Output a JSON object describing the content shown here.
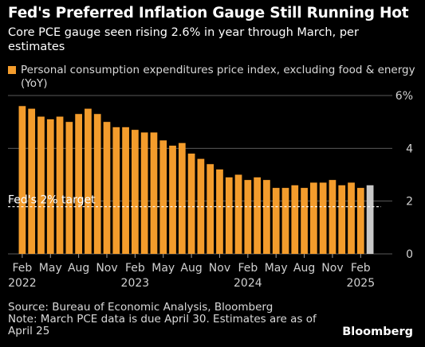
{
  "header": {
    "title": "Fed's Preferred Inflation Gauge Still Running Hot",
    "subtitle": "Core PCE gauge seen rising 2.6% in year through March, per estimates"
  },
  "legend": {
    "label": "Personal consumption expenditures price index, excluding food & energy (YoY)",
    "color": "#f39c2c"
  },
  "footer": {
    "source": "Source: Bureau of Economic Analysis, Bloomberg",
    "note": "Note: March PCE data is due April 30. Estimates are as of April 25",
    "brand": "Bloomberg"
  },
  "chart_data": {
    "type": "bar",
    "categories": [
      "2022-02",
      "2022-03",
      "2022-04",
      "2022-05",
      "2022-06",
      "2022-07",
      "2022-08",
      "2022-09",
      "2022-10",
      "2022-11",
      "2022-12",
      "2023-01",
      "2023-02",
      "2023-03",
      "2023-04",
      "2023-05",
      "2023-06",
      "2023-07",
      "2023-08",
      "2023-09",
      "2023-10",
      "2023-11",
      "2023-12",
      "2024-01",
      "2024-02",
      "2024-03",
      "2024-04",
      "2024-05",
      "2024-06",
      "2024-07",
      "2024-08",
      "2024-09",
      "2024-10",
      "2024-11",
      "2024-12",
      "2025-01",
      "2025-02",
      "2025-03"
    ],
    "values": [
      5.6,
      5.5,
      5.2,
      5.1,
      5.2,
      5.0,
      5.3,
      5.5,
      5.3,
      5.0,
      4.8,
      4.8,
      4.7,
      4.6,
      4.6,
      4.3,
      4.1,
      4.2,
      3.8,
      3.6,
      3.4,
      3.2,
      2.9,
      3.0,
      2.8,
      2.9,
      2.8,
      2.5,
      2.5,
      2.6,
      2.5,
      2.7,
      2.7,
      2.8,
      2.6,
      2.7,
      2.5,
      2.6
    ],
    "value_colors": [
      "#f39c2c",
      "#c8c8c8"
    ],
    "estimate_from_index": 37,
    "x_tick_labels": [
      {
        "index": 0,
        "month": "Feb",
        "year": "2022"
      },
      {
        "index": 3,
        "month": "May",
        "year": ""
      },
      {
        "index": 6,
        "month": "Aug",
        "year": ""
      },
      {
        "index": 9,
        "month": "Nov",
        "year": ""
      },
      {
        "index": 12,
        "month": "Feb",
        "year": "2023"
      },
      {
        "index": 15,
        "month": "May",
        "year": ""
      },
      {
        "index": 18,
        "month": "Aug",
        "year": ""
      },
      {
        "index": 21,
        "month": "Nov",
        "year": ""
      },
      {
        "index": 24,
        "month": "Feb",
        "year": "2024"
      },
      {
        "index": 27,
        "month": "May",
        "year": ""
      },
      {
        "index": 30,
        "month": "Aug",
        "year": ""
      },
      {
        "index": 33,
        "month": "Nov",
        "year": ""
      },
      {
        "index": 36,
        "month": "Feb",
        "year": "2025"
      }
    ],
    "y_ticks": [
      0,
      2,
      4,
      6
    ],
    "y_tick_labels": [
      "0",
      "2",
      "4",
      "6%"
    ],
    "ylim": [
      0,
      6
    ],
    "reference_line": {
      "value": 2,
      "label": "Fed's 2% target"
    },
    "grid": true,
    "title": "",
    "xlabel": "",
    "ylabel": ""
  }
}
